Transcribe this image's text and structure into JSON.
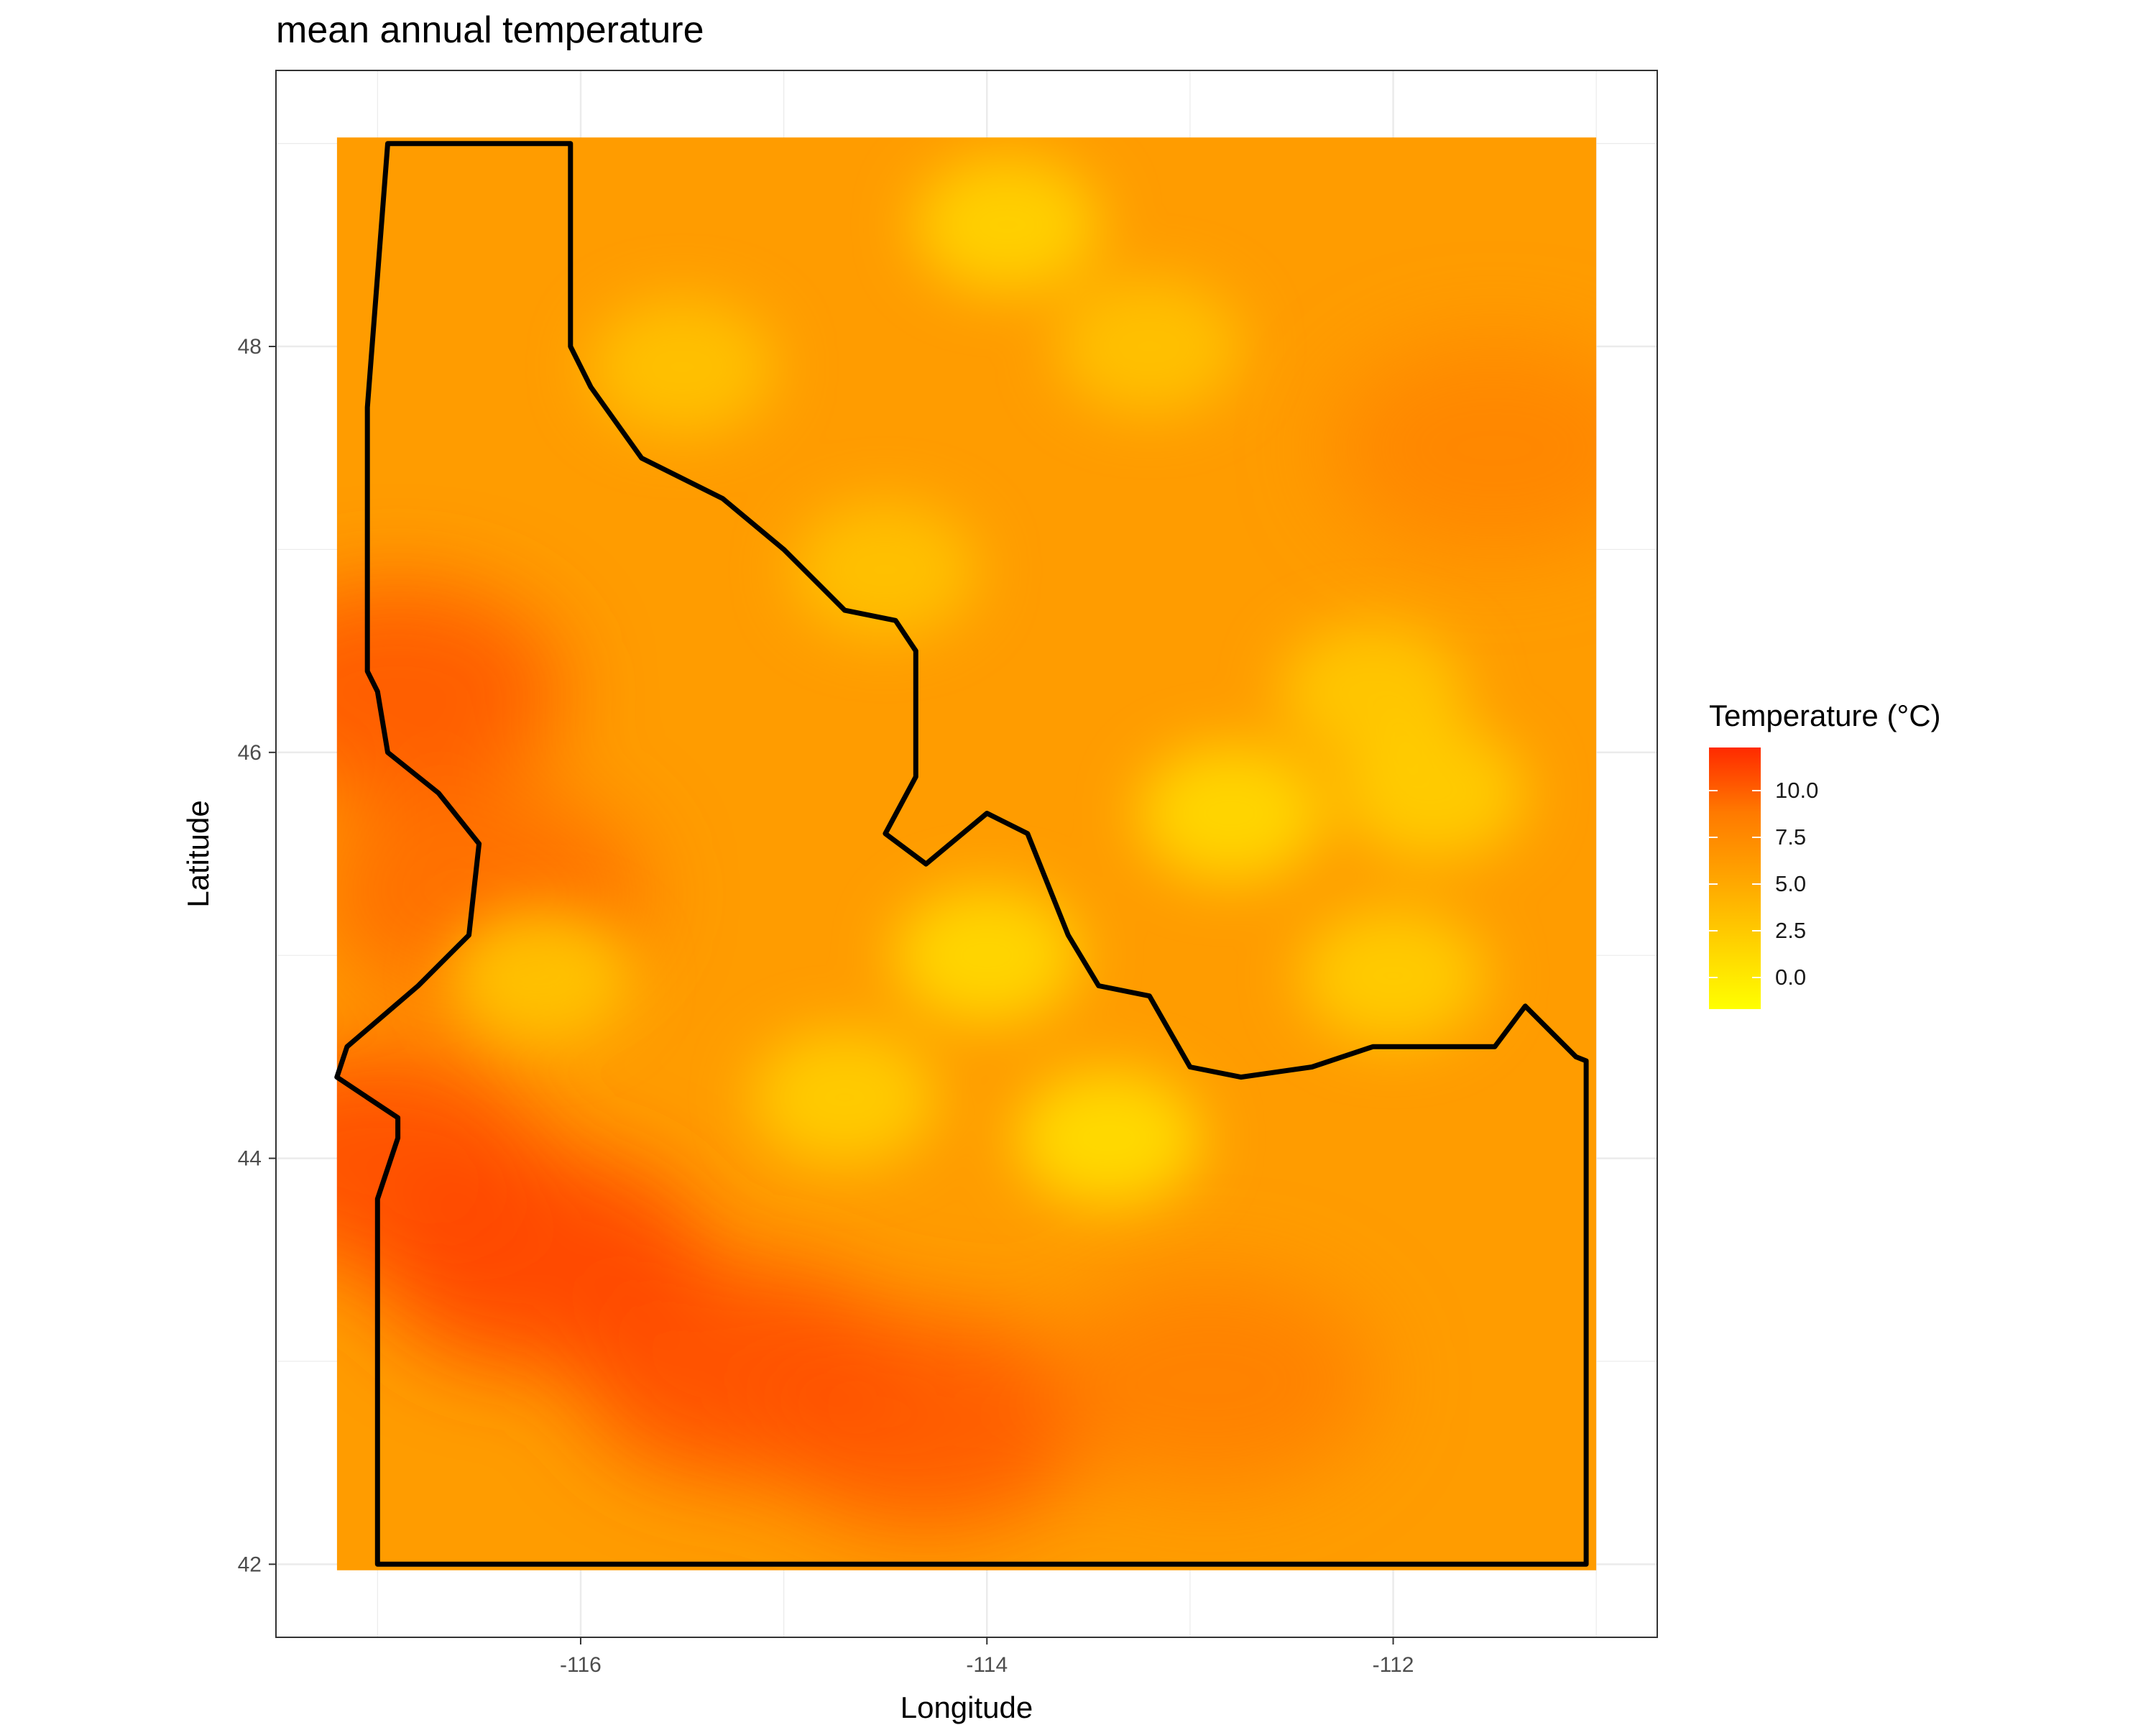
{
  "chart_data": {
    "type": "heatmap",
    "title": "mean annual temperature",
    "xlabel": "Longitude",
    "ylabel": "Latitude",
    "x_ticks": [
      -116,
      -114,
      -112
    ],
    "y_ticks": [
      42,
      44,
      46,
      48
    ],
    "xlim": [
      -117.5,
      -110.7
    ],
    "ylim": [
      41.64,
      49.36
    ],
    "raster_extent_lon": [
      -117.2,
      -111.0
    ],
    "raster_extent_lat": [
      41.97,
      49.03
    ],
    "grid": true,
    "legend": {
      "title": "Temperature (°C)",
      "placement": "right",
      "breaks": [
        10.0,
        7.5,
        5.0,
        2.5,
        0.0
      ],
      "labels": [
        "10.0",
        "7.5",
        "5.0",
        "2.5",
        "0.0"
      ],
      "range": [
        -1.7,
        12.3
      ],
      "colors": [
        "#ffff00",
        "#ffd200",
        "#ffa500",
        "#ff7a00",
        "#ff2a00"
      ]
    },
    "outline": {
      "name": "Idaho border",
      "color": "#000000",
      "lonlat": [
        [
          -116.95,
          49.0
        ],
        [
          -116.05,
          49.0
        ],
        [
          -116.05,
          48.0
        ],
        [
          -115.95,
          47.8
        ],
        [
          -115.7,
          47.45
        ],
        [
          -115.3,
          47.25
        ],
        [
          -115.0,
          47.0
        ],
        [
          -114.7,
          46.7
        ],
        [
          -114.45,
          46.65
        ],
        [
          -114.35,
          46.5
        ],
        [
          -114.35,
          45.88
        ],
        [
          -114.5,
          45.6
        ],
        [
          -114.3,
          45.45
        ],
        [
          -114.0,
          45.7
        ],
        [
          -113.8,
          45.6
        ],
        [
          -113.6,
          45.1
        ],
        [
          -113.45,
          44.85
        ],
        [
          -113.2,
          44.8
        ],
        [
          -113.0,
          44.45
        ],
        [
          -112.75,
          44.4
        ],
        [
          -112.4,
          44.45
        ],
        [
          -112.1,
          44.55
        ],
        [
          -111.7,
          44.55
        ],
        [
          -111.5,
          44.55
        ],
        [
          -111.35,
          44.75
        ],
        [
          -111.1,
          44.5
        ],
        [
          -111.05,
          44.48
        ],
        [
          -111.05,
          42.0
        ],
        [
          -117.0,
          42.0
        ],
        [
          -117.0,
          43.8
        ],
        [
          -116.9,
          44.1
        ],
        [
          -116.9,
          44.2
        ],
        [
          -117.05,
          44.3
        ],
        [
          -117.2,
          44.4
        ],
        [
          -117.15,
          44.55
        ],
        [
          -116.8,
          44.85
        ],
        [
          -116.55,
          45.1
        ],
        [
          -116.5,
          45.55
        ],
        [
          -116.7,
          45.8
        ],
        [
          -116.95,
          46.0
        ],
        [
          -117.0,
          46.3
        ],
        [
          -117.05,
          46.4
        ],
        [
          -117.05,
          47.7
        ],
        [
          -116.95,
          49.0
        ]
      ]
    },
    "hot_zones": [
      {
        "lon": -116.2,
        "lat": 43.5,
        "value": 11.5
      },
      {
        "lon": -115.2,
        "lat": 42.95,
        "value": 11.0
      },
      {
        "lon": -114.3,
        "lat": 42.7,
        "value": 10.5
      },
      {
        "lon": -116.9,
        "lat": 46.3,
        "value": 10.5
      },
      {
        "lon": -117.0,
        "lat": 44.0,
        "value": 11.0
      },
      {
        "lon": -111.5,
        "lat": 47.5,
        "value": 8.0
      },
      {
        "lon": -112.9,
        "lat": 42.9,
        "value": 8.5
      },
      {
        "lon": -116.5,
        "lat": 45.3,
        "value": 9.5
      }
    ],
    "cold_zones": [
      {
        "lon": -114.0,
        "lat": 45.0,
        "value": 0.5
      },
      {
        "lon": -113.4,
        "lat": 44.1,
        "value": 0.0
      },
      {
        "lon": -112.8,
        "lat": 45.7,
        "value": 0.5
      },
      {
        "lon": -114.7,
        "lat": 44.3,
        "value": 1.5
      },
      {
        "lon": -111.8,
        "lat": 45.8,
        "value": 1.5
      },
      {
        "lon": -115.5,
        "lat": 47.9,
        "value": 2.5
      },
      {
        "lon": -113.9,
        "lat": 48.6,
        "value": 1.0
      },
      {
        "lon": -113.2,
        "lat": 48.0,
        "value": 2.5
      },
      {
        "lon": -114.5,
        "lat": 46.9,
        "value": 2.5
      },
      {
        "lon": -116.2,
        "lat": 44.9,
        "value": 2.0
      },
      {
        "lon": -112.1,
        "lat": 46.3,
        "value": 2.0
      },
      {
        "lon": -112.0,
        "lat": 44.9,
        "value": 1.5
      }
    ],
    "base_value": 6.0
  }
}
